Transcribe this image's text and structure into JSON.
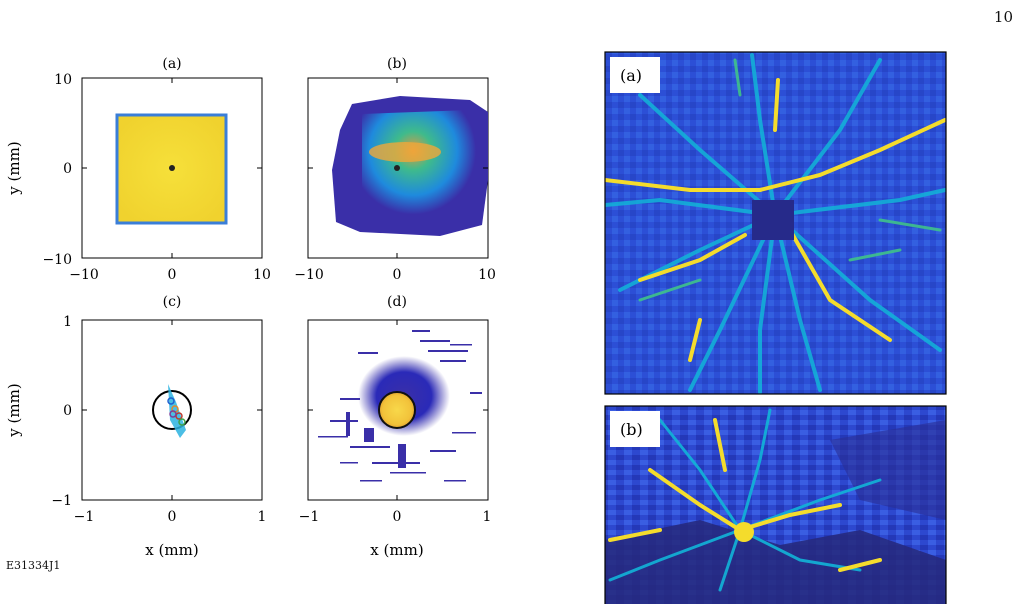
{
  "page_number": "10",
  "figure_id": "E31334J1",
  "left_figure": {
    "panels": [
      {
        "label": "(a)",
        "x_ticks": [
          "−10",
          "0",
          "10"
        ],
        "y_ticks": [
          "10",
          "0",
          "−10"
        ]
      },
      {
        "label": "(b)",
        "x_ticks": [
          "−10",
          "0",
          "10"
        ]
      },
      {
        "label": "(c)",
        "x_ticks": [
          "−1",
          "0",
          "1"
        ],
        "y_ticks": [
          "1",
          "0",
          "−1"
        ]
      },
      {
        "label": "(d)",
        "x_ticks": [
          "−1",
          "0",
          "1"
        ]
      }
    ],
    "y_label": "y (mm)",
    "x_label": "x (mm)"
  },
  "right_figure": {
    "panels": [
      {
        "label": "(a)"
      },
      {
        "label": "(b)"
      }
    ]
  },
  "colors": {
    "parula_dark": "#3a2fa8",
    "parula_blue": "#2f6de0",
    "parula_cyan": "#12b4d8",
    "parula_green": "#3fc28a",
    "parula_yellow": "#f4dc2c"
  }
}
